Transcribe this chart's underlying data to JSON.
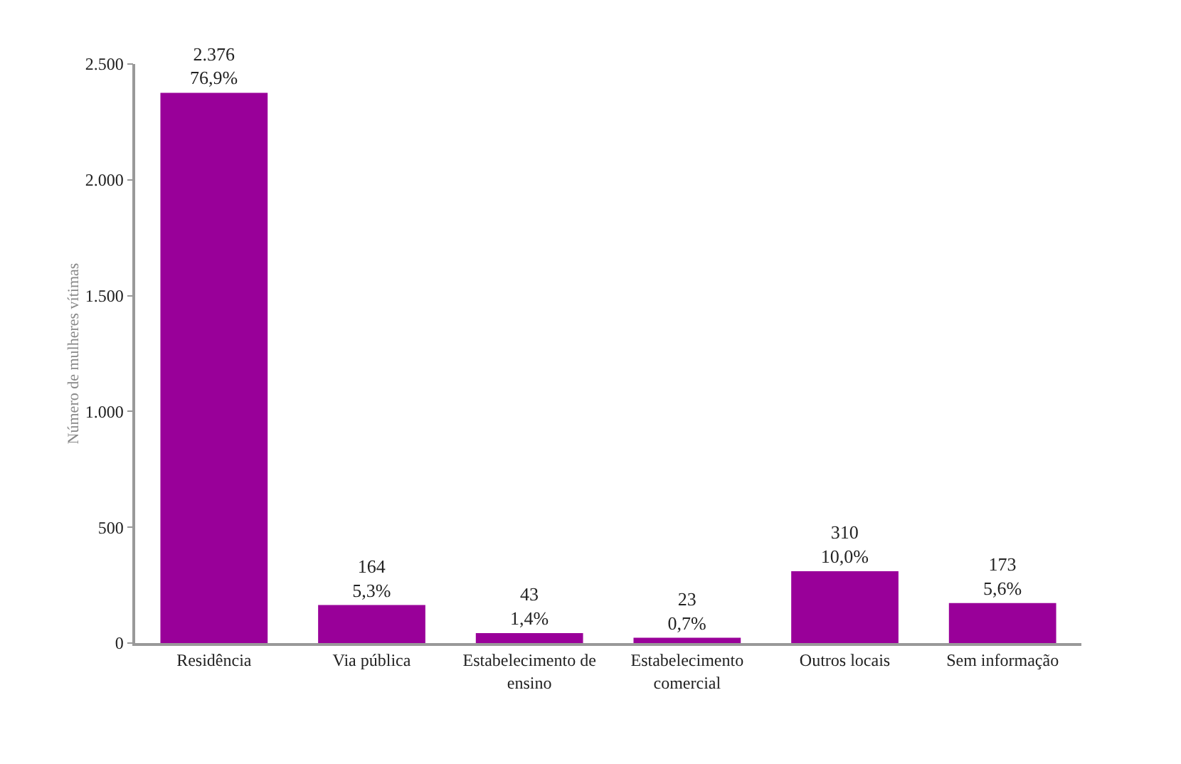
{
  "chart_data": {
    "type": "bar",
    "ylabel": "Número de mulheres vítimas",
    "categories": [
      "Residência",
      "Via pública",
      "Estabelecimento de ensino",
      "Estabelecimento comercial",
      "Outros locais",
      "Sem informação"
    ],
    "values": [
      2376,
      164,
      43,
      23,
      310,
      173
    ],
    "value_labels": [
      "2.376\n76,9%",
      "164\n5,3%",
      "43\n1,4%",
      "23\n0,7%",
      "310\n10,0%",
      "173\n5,6%"
    ],
    "color": "#990099",
    "ylim": [
      0,
      2500
    ],
    "yticks": [
      0,
      500,
      {
        "value": 1000,
        "label": "1.000"
      },
      {
        "value": 1500,
        "label": "1.500"
      },
      {
        "value": 2000,
        "label": "2.000"
      },
      {
        "value": 2500,
        "label": "2.500"
      }
    ],
    "grid": false,
    "legend": false
  }
}
